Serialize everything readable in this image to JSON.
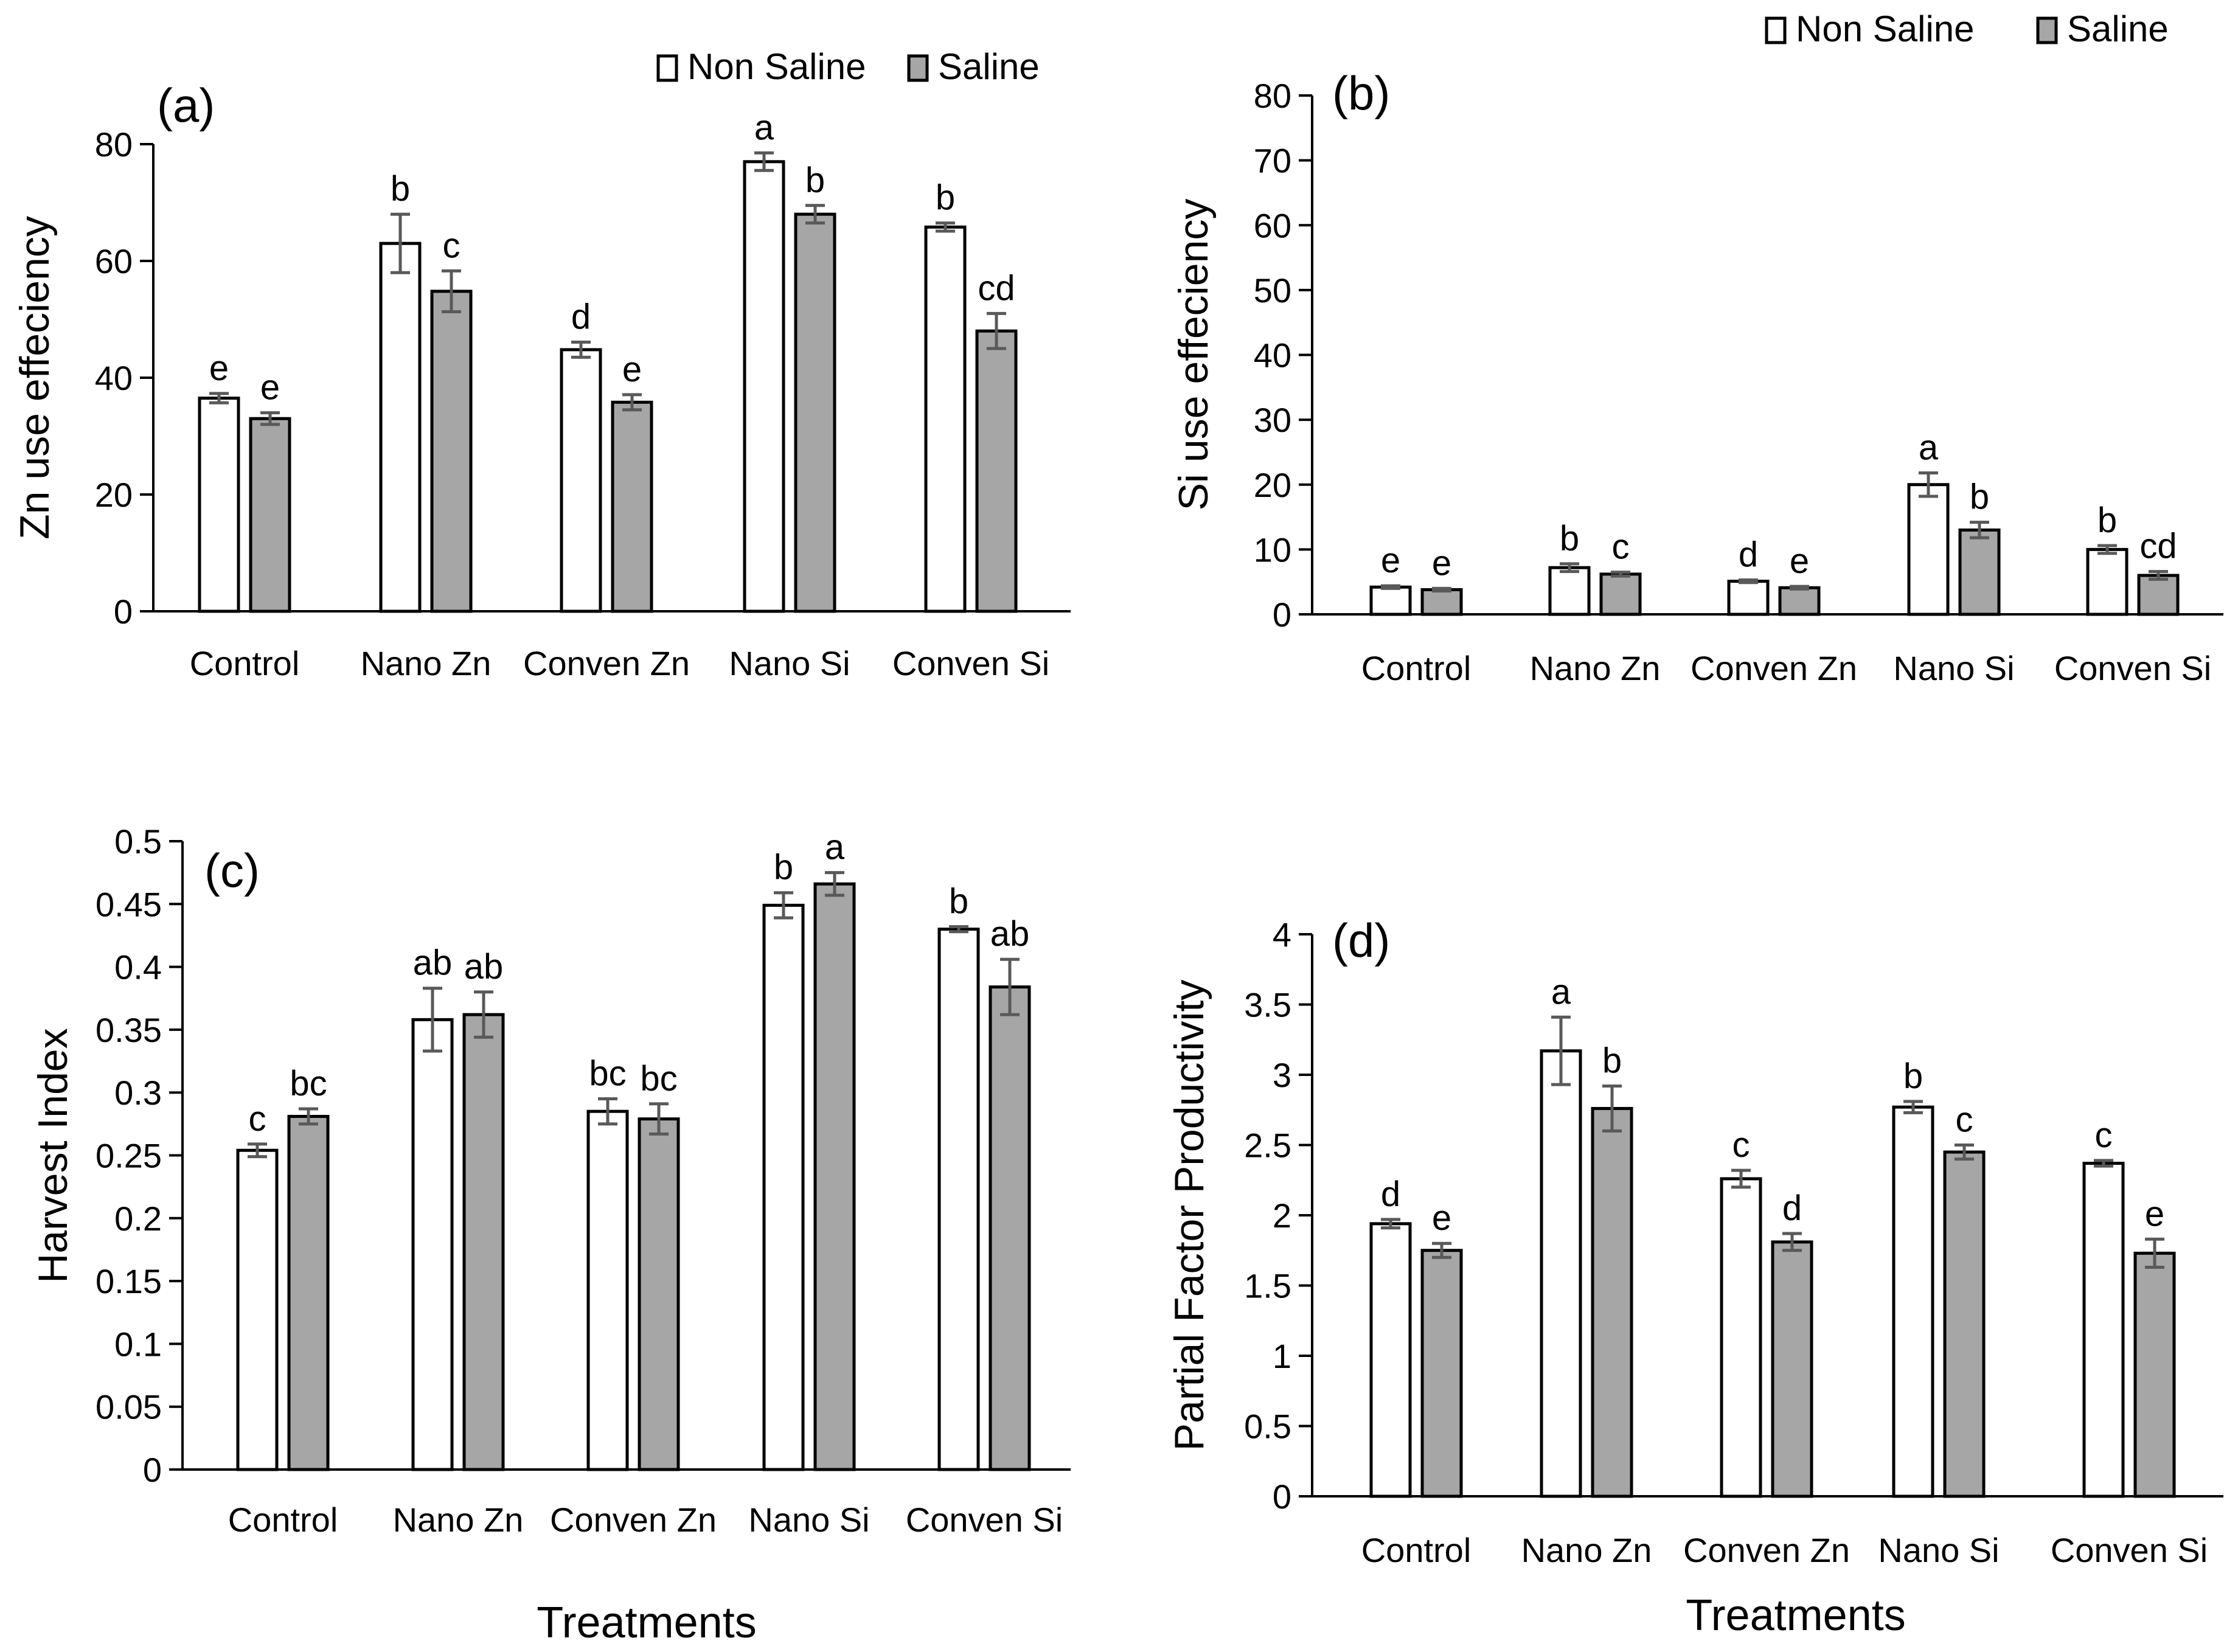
{
  "legend": {
    "non_saline": "Non Saline",
    "saline": "Saline"
  },
  "colors": {
    "non_saline_fill": "#ffffff",
    "saline_fill": "#a6a6a6",
    "bar_stroke": "#000000",
    "error_bar": "#595959",
    "axis": "#000000"
  },
  "chart_data": [
    {
      "panel": "(a)",
      "type": "bar",
      "ylabel": "Zn use effeciency",
      "xlabel": "",
      "ylim": [
        0,
        80
      ],
      "yticks": [
        0,
        20,
        40,
        60,
        80
      ],
      "ytick_labels": [
        "0",
        "20",
        "40",
        "60",
        "80"
      ],
      "categories": [
        "Control",
        "Nano Zn",
        "Conven Zn",
        "Nano Si",
        "Conven Si"
      ],
      "series": [
        {
          "name": "Non Saline",
          "values": [
            36.5,
            63,
            44.8,
            77,
            65.8
          ],
          "errors": [
            0.8,
            5,
            1.3,
            1.5,
            0.7
          ],
          "letters": [
            "e",
            "b",
            "d",
            "a",
            "b"
          ]
        },
        {
          "name": "Saline",
          "values": [
            33,
            54.8,
            35.8,
            68,
            48
          ],
          "errors": [
            1,
            3.5,
            1.3,
            1.5,
            3
          ],
          "letters": [
            "e",
            "c",
            "e",
            "b",
            "cd"
          ]
        }
      ]
    },
    {
      "panel": "(b)",
      "type": "bar",
      "ylabel": "Si use effeciency",
      "xlabel": "",
      "ylim": [
        0,
        80
      ],
      "yticks": [
        0,
        10,
        20,
        30,
        40,
        50,
        60,
        70,
        80
      ],
      "ytick_labels": [
        "0",
        "10",
        "20",
        "30",
        "40",
        "50",
        "60",
        "70",
        "80"
      ],
      "categories": [
        "Control",
        "Nano Zn",
        "Conven Zn",
        "Nano Si",
        "Conven Si"
      ],
      "series": [
        {
          "name": "Non Saline",
          "values": [
            4.2,
            7.2,
            5.1,
            20,
            10
          ],
          "errors": [
            0.2,
            0.6,
            0.2,
            1.8,
            0.6
          ],
          "letters": [
            "e",
            "b",
            "d",
            "a",
            "b"
          ]
        },
        {
          "name": "Saline",
          "values": [
            3.8,
            6.2,
            4.1,
            13,
            6
          ],
          "errors": [
            0.2,
            0.3,
            0.2,
            1.2,
            0.6
          ],
          "letters": [
            "e",
            "c",
            "e",
            "b",
            "cd"
          ]
        }
      ]
    },
    {
      "panel": "(c)",
      "type": "bar",
      "ylabel": "Harvest Index",
      "xlabel": "Treatments",
      "ylim": [
        0,
        0.5
      ],
      "yticks": [
        0,
        0.05,
        0.1,
        0.15,
        0.2,
        0.25,
        0.3,
        0.35,
        0.4,
        0.45,
        0.5
      ],
      "ytick_labels": [
        "0",
        "0.05",
        "0.1",
        "0.15",
        "0.2",
        "0.25",
        "0.3",
        "0.35",
        "0.4",
        "0.45",
        "0.5"
      ],
      "categories": [
        "Control",
        "Nano Zn",
        "Conven Zn",
        "Nano Si",
        "Conven Si"
      ],
      "series": [
        {
          "name": "Non Saline",
          "values": [
            0.254,
            0.358,
            0.285,
            0.449,
            0.43
          ],
          "errors": [
            0.005,
            0.025,
            0.01,
            0.01,
            0.002
          ],
          "letters": [
            "c",
            "ab",
            "bc",
            "b",
            "b"
          ]
        },
        {
          "name": "Saline",
          "values": [
            0.281,
            0.362,
            0.279,
            0.466,
            0.384
          ],
          "errors": [
            0.006,
            0.018,
            0.012,
            0.009,
            0.022
          ],
          "letters": [
            "bc",
            "ab",
            "bc",
            "a",
            "ab"
          ]
        }
      ]
    },
    {
      "panel": "(d)",
      "type": "bar",
      "ylabel": "Partial Factor Productivity",
      "xlabel": "Treatments",
      "ylim": [
        0,
        4
      ],
      "yticks": [
        0,
        0.5,
        1,
        1.5,
        2,
        2.5,
        3,
        3.5,
        4
      ],
      "ytick_labels": [
        "0",
        "0.5",
        "1",
        "1.5",
        "2",
        "2.5",
        "3",
        "3.5",
        "4"
      ],
      "categories": [
        "Control",
        "Nano Zn",
        "Conven Zn",
        "Nano Si",
        "Conven Si"
      ],
      "series": [
        {
          "name": "Non Saline",
          "values": [
            1.94,
            3.17,
            2.26,
            2.77,
            2.37
          ],
          "errors": [
            0.03,
            0.24,
            0.06,
            0.04,
            0.02
          ],
          "letters": [
            "d",
            "a",
            "c",
            "b",
            "c"
          ]
        },
        {
          "name": "Saline",
          "values": [
            1.75,
            2.76,
            1.81,
            2.45,
            1.73
          ],
          "errors": [
            0.05,
            0.16,
            0.06,
            0.05,
            0.1
          ],
          "letters": [
            "e",
            "b",
            "d",
            "c",
            "e"
          ]
        }
      ]
    }
  ]
}
